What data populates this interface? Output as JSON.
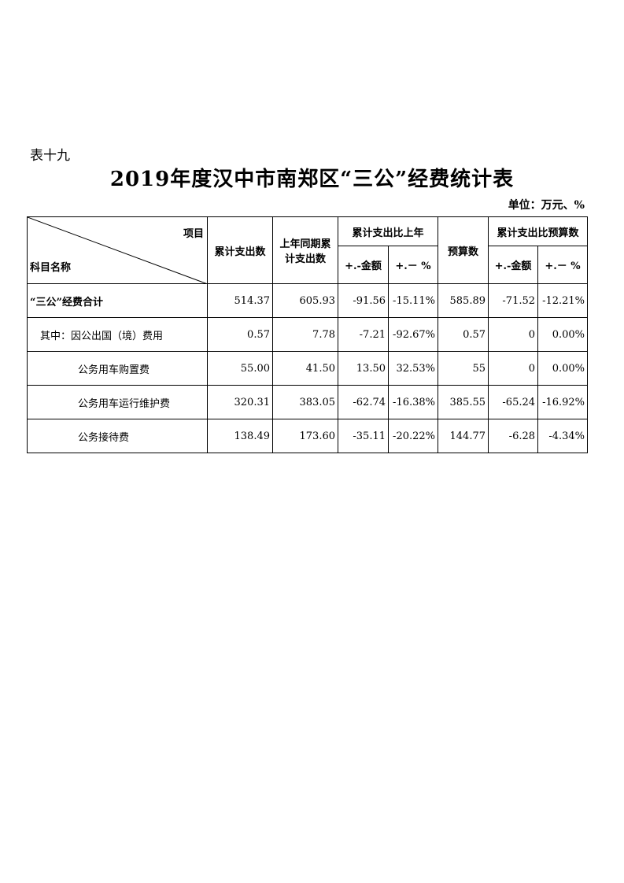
{
  "table_label": "表十九",
  "title": "2019年度汉中市南郑区“三公”经费统计表",
  "unit": "单位：万元、%",
  "header": {
    "item": "项目",
    "subject": "科目名称",
    "cumulative": "累计支出数",
    "last_year": "上年同期累计支出数",
    "vs_last_year": "累计支出比上年",
    "budget": "预算数",
    "vs_budget": "累计支出比预算数",
    "amount": "+.-金额",
    "percent": "+.－ %"
  },
  "rows": [
    {
      "name": "“三公”经费合计",
      "cum": "514.37",
      "last": "605.93",
      "d1": "-91.56",
      "p1": "-15.11%",
      "budget": "585.89",
      "d2": "-71.52",
      "p2": "-12.21%"
    },
    {
      "name": "其中：因公出国（境）费用",
      "cum": "0.57",
      "last": "7.78",
      "d1": "-7.21",
      "p1": "-92.67%",
      "budget": "0.57",
      "d2": "0",
      "p2": "0.00%"
    },
    {
      "name": "公务用车购置费",
      "cum": "55.00",
      "last": "41.50",
      "d1": "13.50",
      "p1": "32.53%",
      "budget": "55",
      "d2": "0",
      "p2": "0.00%"
    },
    {
      "name": "公务用车运行维护费",
      "cum": "320.31",
      "last": "383.05",
      "d1": "-62.74",
      "p1": "-16.38%",
      "budget": "385.55",
      "d2": "-65.24",
      "p2": "-16.92%"
    },
    {
      "name": "公务接待费",
      "cum": "138.49",
      "last": "173.60",
      "d1": "-35.11",
      "p1": "-20.22%",
      "budget": "144.77",
      "d2": "-6.28",
      "p2": "-4.34%"
    }
  ]
}
